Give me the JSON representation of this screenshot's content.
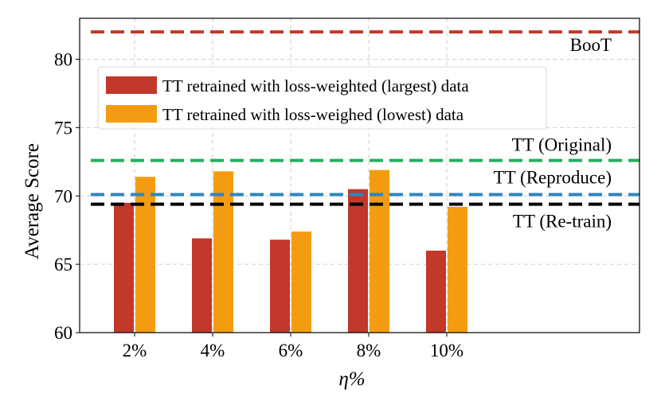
{
  "chart_data": {
    "type": "bar",
    "title": "",
    "xlabel": "η%",
    "ylabel": "Average Score",
    "categories": [
      "2%",
      "4%",
      "6%",
      "8%",
      "10%"
    ],
    "ylim": [
      60,
      83
    ],
    "yticks": [
      60,
      65,
      70,
      75,
      80
    ],
    "grid": true,
    "legend_position": "top-left",
    "series": [
      {
        "name": "TT retrained with loss-weighted (largest) data",
        "color": "#c0392b",
        "values": [
          69.5,
          66.9,
          66.8,
          70.5,
          66.0
        ]
      },
      {
        "name": "TT retrained with loss-weighed (lowest) data",
        "color": "#f39c12",
        "values": [
          71.4,
          71.8,
          67.4,
          71.9,
          69.2
        ]
      }
    ],
    "reference_lines": [
      {
        "name": "BooT",
        "value": 82.0,
        "color": "#c0392b"
      },
      {
        "name": "TT (Original)",
        "value": 72.6,
        "color": "#27ae60"
      },
      {
        "name": "TT (Reproduce)",
        "value": 70.1,
        "color": "#2e86c1"
      },
      {
        "name": "TT (Re-train)",
        "value": 69.4,
        "color": "#000000"
      }
    ]
  }
}
